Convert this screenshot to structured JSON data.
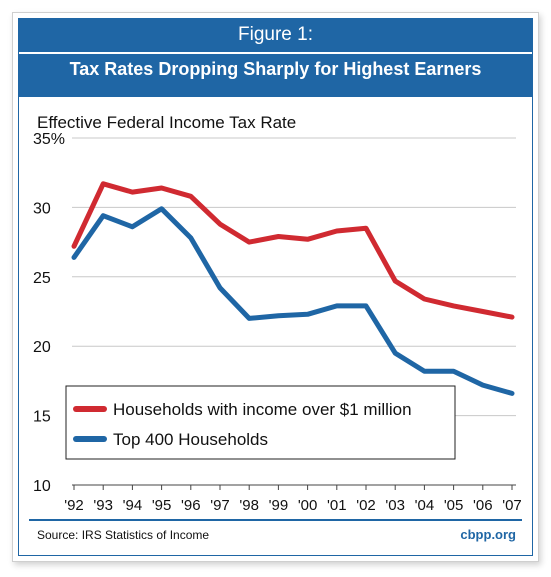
{
  "figure": {
    "label": "Figure 1:",
    "title": "Tax Rates Dropping Sharply for Highest Earners",
    "source": "Source: IRS Statistics of Income",
    "credit": "cbpp.org"
  },
  "chart_data": {
    "type": "line",
    "ylabel": "Effective Federal Income Tax Rate",
    "xlabel": "",
    "categories": [
      "'92",
      "'93",
      "'94",
      "'95",
      "'96",
      "'97",
      "'98",
      "'99",
      "'00",
      "'01",
      "'02",
      "'03",
      "'04",
      "'05",
      "'06",
      "'07"
    ],
    "ylim": [
      10,
      35
    ],
    "yticks": [
      10,
      15,
      20,
      25,
      30,
      35
    ],
    "ytick_labels": [
      "10",
      "15",
      "20",
      "25",
      "30",
      "35%"
    ],
    "grid": true,
    "legend_position": "lower-left",
    "series": [
      {
        "name": "Households with income over $1 million",
        "color": "#d02a31",
        "values": [
          27.2,
          31.7,
          31.1,
          31.4,
          30.8,
          28.8,
          27.5,
          27.9,
          27.7,
          28.3,
          28.5,
          24.7,
          23.4,
          22.9,
          22.5,
          22.1
        ]
      },
      {
        "name": "Top 400 Households",
        "color": "#1f66a5",
        "values": [
          26.4,
          29.4,
          28.6,
          29.9,
          27.8,
          24.2,
          22.0,
          22.2,
          22.3,
          22.9,
          22.9,
          19.5,
          18.2,
          18.2,
          17.2,
          16.6
        ]
      }
    ]
  }
}
